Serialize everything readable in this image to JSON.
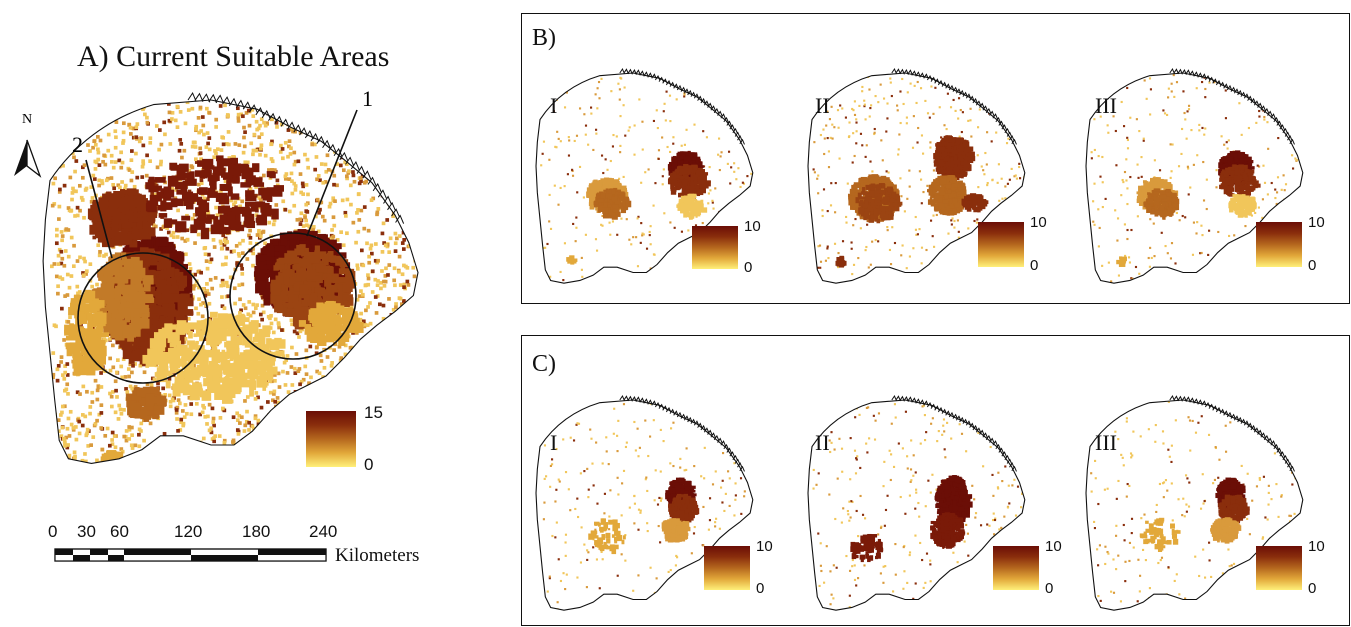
{
  "panel_a": {
    "title": "A) Current Suitable Areas",
    "north_label": "N",
    "callouts": [
      "1",
      "2"
    ],
    "legend": {
      "max": "15",
      "min": "0"
    }
  },
  "panel_b": {
    "label": "B)",
    "maps": [
      {
        "label": "I",
        "legend_max": "10",
        "legend_min": "0"
      },
      {
        "label": "II",
        "legend_max": "10",
        "legend_min": "0"
      },
      {
        "label": "III",
        "legend_max": "10",
        "legend_min": "0"
      }
    ]
  },
  "panel_c": {
    "label": "C)",
    "maps": [
      {
        "label": "I",
        "legend_max": "10",
        "legend_min": "0"
      },
      {
        "label": "II",
        "legend_max": "10",
        "legend_min": "0"
      },
      {
        "label": "III",
        "legend_max": "10",
        "legend_min": "0"
      }
    ]
  },
  "scale_bar": {
    "ticks": [
      "0",
      "30",
      "60",
      "120",
      "180",
      "240"
    ],
    "unit": "Kilometers"
  },
  "colors": {
    "high": "#6b0e06",
    "mid": "#b5671e",
    "low": "#fff07a",
    "outline": "#111111"
  }
}
